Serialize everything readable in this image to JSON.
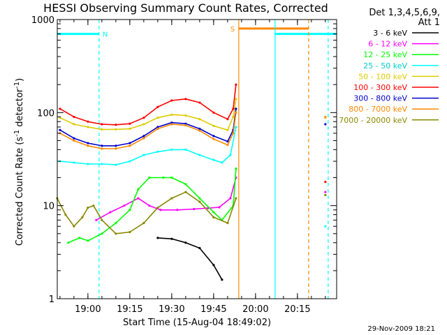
{
  "chart_data": {
    "type": "line",
    "title": "HESSI Observing Summary Count Rates, Corrected",
    "xlabel": "Start Time (15-Aug-04 18:49:02)",
    "ylabel_main": "Corrected Count Rate (s",
    "ylabel_mid": " detector",
    "ylabel_exp1": "-1",
    "ylabel_exp2": "-1",
    "y_scale": "log",
    "xlim": [
      "18:49:02",
      "20:29:02"
    ],
    "ylim": [
      1,
      1000
    ],
    "x_ticks": [
      "19:00",
      "19:15",
      "19:30",
      "19:45",
      "20:00",
      "20:15"
    ],
    "y_ticks": [
      "1",
      "10",
      "100",
      "1000"
    ],
    "grid": false,
    "timestamp": "29-Nov-2009 18:21",
    "legend": {
      "header_line1": "Det 1,3,4,5,6,9,",
      "header_line2": "Att 1",
      "placement": "right"
    },
    "annotations": {
      "night_label": "N",
      "saa_label": "S"
    },
    "series": [
      {
        "name": "3 - 6 keV",
        "color": "#000000",
        "points": [
          [
            "19:25",
            4.5
          ],
          [
            "19:30",
            4.4
          ],
          [
            "19:35",
            4.0
          ],
          [
            "19:40",
            3.5
          ],
          [
            "19:45",
            2.3
          ],
          [
            "19:48",
            1.6
          ]
        ]
      },
      {
        "name": "6 - 12 keV",
        "color": "#ff00ff",
        "points": [
          [
            "19:03",
            7.0
          ],
          [
            "19:08",
            8.5
          ],
          [
            "19:13",
            10.0
          ],
          [
            "19:18",
            12.0
          ],
          [
            "19:22",
            10.0
          ],
          [
            "19:26",
            9.0
          ],
          [
            "19:32",
            9.0
          ],
          [
            "19:38",
            9.2
          ],
          [
            "19:43",
            9.4
          ],
          [
            "19:47",
            9.6
          ],
          [
            "19:51",
            12.0
          ],
          [
            "19:53",
            20.0
          ],
          [
            "20:25",
            14.0
          ]
        ]
      },
      {
        "name": "12 - 25 keV",
        "color": "#00ff00",
        "points": [
          [
            "18:53",
            4.0
          ],
          [
            "18:57",
            4.5
          ],
          [
            "19:00",
            4.2
          ],
          [
            "19:05",
            5.0
          ],
          [
            "19:10",
            6.5
          ],
          [
            "19:15",
            9.0
          ],
          [
            "19:18",
            15.0
          ],
          [
            "19:22",
            20.0
          ],
          [
            "19:27",
            20.0
          ],
          [
            "19:30",
            20.0
          ],
          [
            "19:35",
            17.0
          ],
          [
            "19:40",
            12.0
          ],
          [
            "19:45",
            8.5
          ],
          [
            "19:48",
            7.0
          ],
          [
            "19:52",
            10.0
          ],
          [
            "19:53",
            25.0
          ],
          [
            "20:25",
            13.0
          ]
        ]
      },
      {
        "name": "25 - 50 keV",
        "color": "#00ffff",
        "points": [
          [
            "18:50",
            30.0
          ],
          [
            "18:55",
            29.0
          ],
          [
            "19:00",
            28.0
          ],
          [
            "19:05",
            28.0
          ],
          [
            "19:10",
            27.5
          ],
          [
            "19:15",
            30.0
          ],
          [
            "19:20",
            35.0
          ],
          [
            "19:25",
            38.0
          ],
          [
            "19:30",
            40.0
          ],
          [
            "19:35",
            40.0
          ],
          [
            "19:40",
            35.0
          ],
          [
            "19:45",
            31.0
          ],
          [
            "19:48",
            29.0
          ],
          [
            "19:51",
            35.0
          ],
          [
            "19:53",
            70.0
          ],
          [
            "20:25",
            6.0
          ]
        ]
      },
      {
        "name": "50 - 100 keV",
        "color": "#ddcc00",
        "points": [
          [
            "18:50",
            88.0
          ],
          [
            "18:55",
            75.0
          ],
          [
            "19:00",
            70.0
          ],
          [
            "19:05",
            66.0
          ],
          [
            "19:10",
            66.0
          ],
          [
            "19:15",
            67.0
          ],
          [
            "19:20",
            75.0
          ],
          [
            "19:25",
            88.0
          ],
          [
            "19:30",
            95.0
          ],
          [
            "19:35",
            93.0
          ],
          [
            "19:40",
            85.0
          ],
          [
            "19:45",
            72.0
          ],
          [
            "19:50",
            65.0
          ],
          [
            "19:52",
            90.0
          ],
          [
            "19:53",
            140.0
          ],
          [
            "20:25",
            88.0
          ]
        ]
      },
      {
        "name": "100 - 300 keV",
        "color": "#ff0000",
        "points": [
          [
            "18:50",
            110.0
          ],
          [
            "18:55",
            90.0
          ],
          [
            "19:00",
            80.0
          ],
          [
            "19:05",
            75.0
          ],
          [
            "19:10",
            74.0
          ],
          [
            "19:15",
            76.0
          ],
          [
            "19:20",
            88.0
          ],
          [
            "19:25",
            115.0
          ],
          [
            "19:30",
            135.0
          ],
          [
            "19:35",
            140.0
          ],
          [
            "19:40",
            128.0
          ],
          [
            "19:45",
            100.0
          ],
          [
            "19:50",
            85.0
          ],
          [
            "19:52",
            110.0
          ],
          [
            "19:53",
            200.0
          ],
          [
            "20:25",
            18.0
          ]
        ]
      },
      {
        "name": "300 - 800 keV",
        "color": "#0000cc",
        "points": [
          [
            "18:50",
            65.0
          ],
          [
            "18:55",
            53.0
          ],
          [
            "19:00",
            47.0
          ],
          [
            "19:05",
            44.0
          ],
          [
            "19:10",
            44.0
          ],
          [
            "19:15",
            47.0
          ],
          [
            "19:20",
            56.0
          ],
          [
            "19:25",
            70.0
          ],
          [
            "19:30",
            78.0
          ],
          [
            "19:35",
            76.0
          ],
          [
            "19:40",
            67.0
          ],
          [
            "19:45",
            56.0
          ],
          [
            "19:50",
            49.0
          ],
          [
            "19:52",
            65.0
          ],
          [
            "19:53",
            110.0
          ],
          [
            "20:25",
            75.0
          ]
        ]
      },
      {
        "name": "800 - 7000 keV",
        "color": "#ff8800",
        "points": [
          [
            "18:50",
            60.0
          ],
          [
            "18:55",
            50.0
          ],
          [
            "19:00",
            44.0
          ],
          [
            "19:05",
            41.0
          ],
          [
            "19:10",
            41.0
          ],
          [
            "19:15",
            44.0
          ],
          [
            "19:20",
            53.0
          ],
          [
            "19:25",
            67.0
          ],
          [
            "19:30",
            75.0
          ],
          [
            "19:35",
            73.0
          ],
          [
            "19:40",
            64.0
          ],
          [
            "19:45",
            52.0
          ],
          [
            "19:50",
            45.0
          ],
          [
            "19:52",
            60.0
          ],
          [
            "19:53",
            100.0
          ],
          [
            "20:25",
            90.0
          ]
        ]
      },
      {
        "name": "7000 - 20000 keV",
        "color": "#888800",
        "points": [
          [
            "18:49",
            12.0
          ],
          [
            "18:52",
            8.0
          ],
          [
            "18:55",
            6.0
          ],
          [
            "18:58",
            7.5
          ],
          [
            "19:00",
            9.5
          ],
          [
            "19:02",
            10.0
          ],
          [
            "19:05",
            7.0
          ],
          [
            "19:10",
            5.0
          ],
          [
            "19:15",
            5.2
          ],
          [
            "19:20",
            6.5
          ],
          [
            "19:25",
            9.5
          ],
          [
            "19:30",
            12.0
          ],
          [
            "19:35",
            14.0
          ],
          [
            "19:40",
            11.0
          ],
          [
            "19:45",
            7.5
          ],
          [
            "19:50",
            6.5
          ],
          [
            "19:53",
            12.0
          ],
          [
            "20:25",
            13.0
          ]
        ]
      }
    ],
    "state_bars": [
      {
        "label": "night",
        "color": "#00ffff",
        "from": "18:49",
        "to": "19:04",
        "y": 700
      },
      {
        "label": "night",
        "color": "#00ffff",
        "from": "20:07",
        "to": "20:29",
        "y": 700
      },
      {
        "label": "saa",
        "color": "#ff8800",
        "from": "19:54",
        "to": "20:19",
        "y": 800
      }
    ],
    "vertical_markers": [
      {
        "time": "19:04",
        "color": "#00ffff",
        "style": "dashed"
      },
      {
        "time": "19:54",
        "color": "#ff8800",
        "style": "solid"
      },
      {
        "time": "20:07",
        "color": "#00ffff",
        "style": "solid"
      },
      {
        "time": "20:19",
        "color": "#ff8800",
        "style": "dashed"
      },
      {
        "time": "20:26",
        "color": "#00ffff",
        "style": "dashed"
      }
    ]
  }
}
